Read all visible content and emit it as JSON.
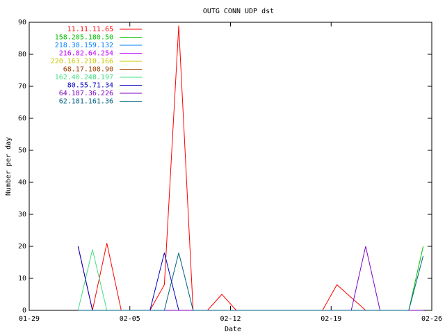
{
  "chart_data": {
    "type": "line",
    "title": "OUTG CONN UDP dst",
    "x_label": "Date",
    "y_label": "Number per day",
    "x": [
      3.4,
      4.4,
      5.4,
      6.4,
      7.4,
      8.4,
      9.4,
      10.4,
      11.4,
      12.4,
      13.4,
      14.4,
      15.4,
      16.4,
      17.4,
      18.4,
      19.4,
      20.4,
      21.4,
      22.4,
      23.4,
      24.4,
      25.4,
      26.4,
      27.4
    ],
    "xlim": [
      0,
      28
    ],
    "xticks": [
      {
        "value": 0,
        "label": "01-29"
      },
      {
        "value": 7,
        "label": "02-05"
      },
      {
        "value": 14,
        "label": "02-12"
      },
      {
        "value": 21,
        "label": "02-19"
      },
      {
        "value": 28,
        "label": "02-26"
      }
    ],
    "ylim": [
      0,
      90
    ],
    "yticks": [
      0,
      10,
      20,
      30,
      40,
      50,
      60,
      70,
      80,
      90
    ],
    "legend": "top-left",
    "series": [
      {
        "name": "11.11.11.65",
        "color": "#ff0000",
        "values": [
          20,
          0,
          21,
          0,
          0,
          0,
          8,
          89,
          0,
          0,
          5,
          0,
          0,
          0,
          0,
          0,
          0,
          0,
          8,
          4,
          0,
          0,
          0,
          0,
          0
        ]
      },
      {
        "name": "158.205.180.50",
        "color": "#00c000",
        "values": [
          0,
          0,
          0,
          0,
          0,
          0,
          0,
          0,
          0,
          0,
          0,
          0,
          0,
          0,
          0,
          0,
          0,
          0,
          0,
          0,
          0,
          0,
          0,
          0,
          20
        ]
      },
      {
        "name": "218.38.159.132",
        "color": "#0080ff",
        "values": [
          0,
          0,
          0,
          0,
          0,
          0,
          0,
          0,
          0,
          0,
          0,
          0,
          0,
          0,
          0,
          0,
          0,
          0,
          0,
          0,
          0,
          0,
          0,
          0,
          0
        ]
      },
      {
        "name": "216.82.64.254",
        "color": "#c000ff",
        "values": [
          0,
          0,
          0,
          0,
          0,
          0,
          0,
          0,
          0,
          0,
          0,
          0,
          0,
          0,
          0,
          0,
          0,
          0,
          0,
          0,
          0,
          0,
          0,
          0,
          0
        ]
      },
      {
        "name": "220.163.210.166",
        "color": "#c8c800",
        "values": [
          0,
          0,
          0,
          0,
          0,
          0,
          0,
          0,
          0,
          0,
          0,
          0,
          0,
          0,
          0,
          0,
          0,
          0,
          0,
          0,
          0,
          0,
          0,
          0,
          0
        ]
      },
      {
        "name": "68.17.108.90",
        "color": "#a04000",
        "values": [
          0,
          0,
          0,
          0,
          0,
          0,
          0,
          0,
          0,
          0,
          0,
          0,
          0,
          0,
          0,
          0,
          0,
          0,
          0,
          0,
          0,
          0,
          0,
          0,
          0
        ]
      },
      {
        "name": "162.40.248.197",
        "color": "#40e080",
        "values": [
          0,
          19,
          0,
          0,
          0,
          0,
          0,
          0,
          0,
          0,
          0,
          0,
          0,
          0,
          0,
          0,
          0,
          0,
          0,
          0,
          0,
          0,
          0,
          0,
          0
        ]
      },
      {
        "name": "80.55.71.34",
        "color": "#0000c0",
        "values": [
          20,
          0,
          0,
          0,
          0,
          0,
          18,
          0,
          0,
          0,
          0,
          0,
          0,
          0,
          0,
          0,
          0,
          0,
          0,
          0,
          0,
          0,
          0,
          0,
          0
        ]
      },
      {
        "name": "64.187.36.226",
        "color": "#8000c0",
        "values": [
          0,
          0,
          0,
          0,
          0,
          0,
          0,
          0,
          0,
          0,
          0,
          0,
          0,
          0,
          0,
          0,
          0,
          0,
          0,
          0,
          20,
          0,
          0,
          0,
          0
        ]
      },
      {
        "name": "62.181.161.36",
        "color": "#006080",
        "values": [
          0,
          0,
          0,
          0,
          0,
          0,
          0,
          18,
          0,
          0,
          0,
          0,
          0,
          0,
          0,
          0,
          0,
          0,
          0,
          0,
          0,
          0,
          0,
          0,
          17
        ]
      }
    ]
  }
}
